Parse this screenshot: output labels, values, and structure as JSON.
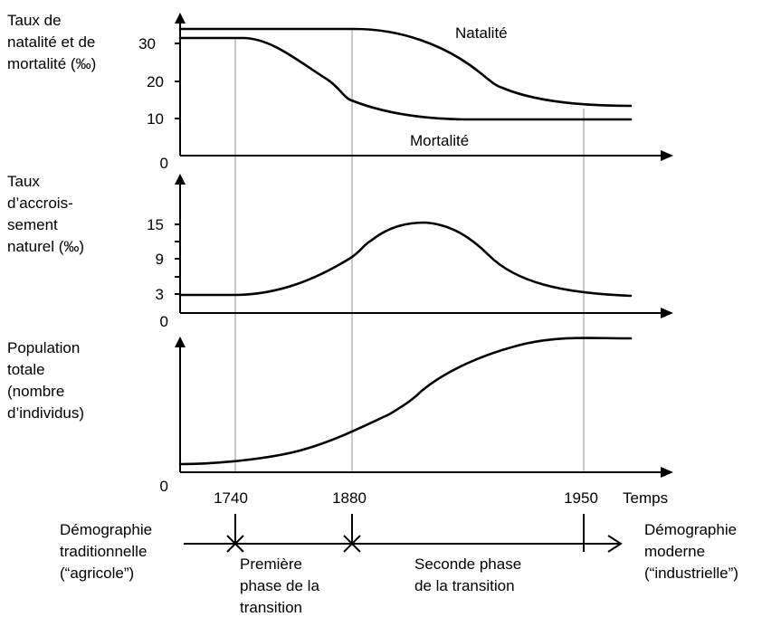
{
  "panels": {
    "rates": {
      "ylabel": [
        "Taux de",
        "natalité et de",
        "mortalité (‰)"
      ],
      "ticks": [
        "30",
        "20",
        "10"
      ],
      "zero": "0",
      "natalite_label": "Natalité",
      "mortalite_label": "Mortalité"
    },
    "growth": {
      "ylabel": [
        "Taux",
        "d’accrois-",
        "sement",
        "naturel (‰)"
      ],
      "ticks": [
        "15",
        "9",
        "3"
      ],
      "zero": "0"
    },
    "population": {
      "ylabel": [
        "Population",
        "totale",
        "(nombre",
        "d’individus)"
      ],
      "zero": "0"
    }
  },
  "time_axis": {
    "years": [
      "1740",
      "1880",
      "1950"
    ],
    "label": "Temps"
  },
  "timeline": {
    "start": [
      "Démographie",
      "traditionnelle",
      "(“agricole”)"
    ],
    "phase1": [
      "Première",
      "phase de la",
      "transition"
    ],
    "phase2": [
      "Seconde phase",
      "de la transition"
    ],
    "end": [
      "Démographie",
      "moderne",
      "(“industrielle”)"
    ]
  }
}
